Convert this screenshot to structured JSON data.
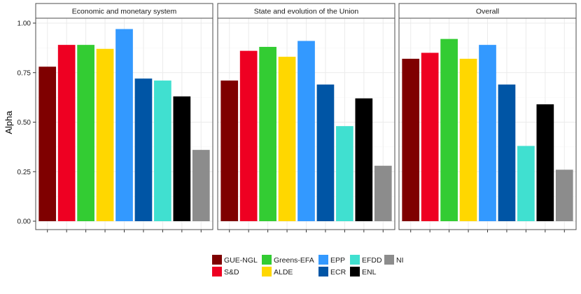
{
  "chart_data": {
    "type": "bar",
    "ylabel": "Alpha",
    "ylim": [
      0,
      1.05
    ],
    "yticks": [
      "0.00",
      "0.25",
      "0.50",
      "0.75",
      "1.00"
    ],
    "ytick_values": [
      0,
      0.25,
      0.5,
      0.75,
      1.0
    ],
    "categories": [
      "GUE-NGL",
      "S&D",
      "Greens-EFA",
      "ALDE",
      "EPP",
      "ECR",
      "EFDD",
      "ENL",
      "NI"
    ],
    "colors": [
      "#7f0000",
      "#ee0022",
      "#33cc33",
      "#ffd700",
      "#3399ff",
      "#0055a5",
      "#40e0d0",
      "#000000",
      "#8c8c8c"
    ],
    "facets": [
      {
        "title": "Economic and monetary system",
        "values": [
          0.78,
          0.89,
          0.89,
          0.87,
          0.97,
          0.72,
          0.71,
          0.63,
          0.36
        ]
      },
      {
        "title": "State and evolution of the Union",
        "values": [
          0.71,
          0.86,
          0.88,
          0.83,
          0.91,
          0.69,
          0.48,
          0.62,
          0.28
        ]
      },
      {
        "title": "Overall",
        "values": [
          0.82,
          0.85,
          0.92,
          0.82,
          0.89,
          0.69,
          0.38,
          0.59,
          0.26
        ]
      }
    ],
    "legend_position": "bottom",
    "grid": true
  }
}
